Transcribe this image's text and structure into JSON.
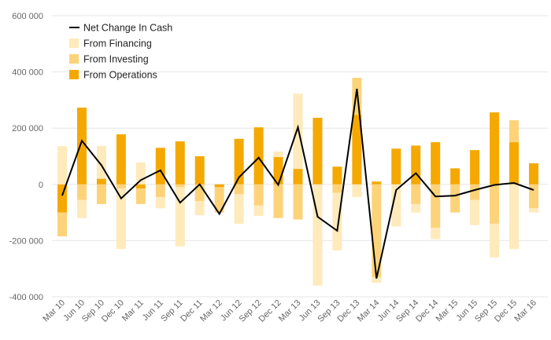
{
  "chart_data": {
    "type": "bar",
    "stacked": true,
    "title": "",
    "xlabel": "",
    "ylabel": "",
    "ylim": [
      -400000,
      600000
    ],
    "yticks": [
      600000,
      400000,
      200000,
      0,
      -200000,
      -400000
    ],
    "ytick_labels": [
      "600 000",
      "400 000",
      "200 000",
      "0",
      "-200 000",
      "-400 000"
    ],
    "grid": true,
    "legend_position": "top-left",
    "categories": [
      "Mar 10",
      "Jun 10",
      "Sep 10",
      "Dec 10",
      "Mar 11",
      "Jun 11",
      "Sep 11",
      "Dec 11",
      "Mar 12",
      "Jun 12",
      "Sep 12",
      "Dec 12",
      "Mar 13",
      "Jun 13",
      "Sep 13",
      "Dec 13",
      "Mar 14",
      "Jun 14",
      "Sep 14",
      "Dec 14",
      "Mar 15",
      "Jun 15",
      "Sep 15",
      "Dec 15",
      "Mar 16"
    ],
    "series": [
      {
        "name": "From Operations",
        "color": "#f5a800",
        "values": [
          -100000,
          273000,
          20000,
          178000,
          -15000,
          130000,
          153000,
          100000,
          -10000,
          162000,
          203000,
          97000,
          55000,
          237000,
          63000,
          247000,
          10000,
          127000,
          138000,
          150000,
          57000,
          122000,
          256000,
          150000,
          75000
        ]
      },
      {
        "name": "From Investing",
        "color": "#fdd37a",
        "values": [
          -85000,
          -55000,
          -70000,
          -15000,
          -55000,
          -45000,
          -10000,
          -60000,
          -90000,
          -35000,
          -75000,
          -120000,
          -125000,
          0,
          -30000,
          132000,
          -330000,
          0,
          -70000,
          -155000,
          -100000,
          -55000,
          -140000,
          78000,
          -85000
        ]
      },
      {
        "name": "From Financing",
        "color": "#feeabb",
        "values": [
          136000,
          -65000,
          117000,
          -215000,
          78000,
          -40000,
          -210000,
          -50000,
          0,
          -105000,
          -37000,
          20000,
          268000,
          -360000,
          -205000,
          -45000,
          -20000,
          -150000,
          -30000,
          -40000,
          0,
          -90000,
          -120000,
          -230000,
          -15000
        ]
      }
    ],
    "line": {
      "name": "Net Change In Cash",
      "color": "#000000",
      "values": [
        -40000,
        155000,
        68000,
        -50000,
        15000,
        50000,
        -65000,
        0,
        -105000,
        25000,
        95000,
        -2000,
        203000,
        -115000,
        -165000,
        340000,
        -335000,
        -20000,
        40000,
        -43000,
        -40000,
        -20000,
        -2000,
        5000,
        -20000
      ]
    },
    "legend": [
      {
        "label": "Net Change In Cash",
        "kind": "line",
        "color": "#000000"
      },
      {
        "label": "From Financing",
        "kind": "box",
        "color": "#feeabb"
      },
      {
        "label": "From Investing",
        "kind": "box",
        "color": "#fdd37a"
      },
      {
        "label": "From Operations",
        "kind": "box",
        "color": "#f5a800"
      }
    ]
  }
}
